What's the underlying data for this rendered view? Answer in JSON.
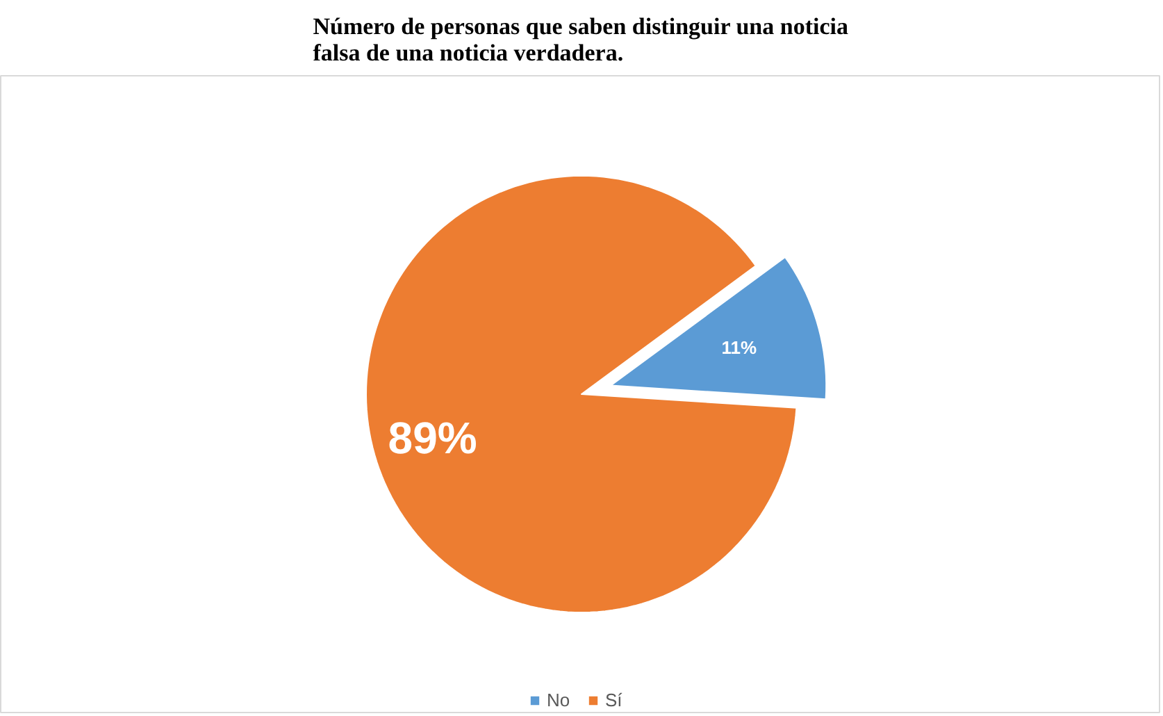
{
  "chart_data": {
    "type": "pie",
    "title": "Número de personas que saben distinguir una noticia falsa de una noticia verdadera.",
    "categories": [
      "No",
      "Sí"
    ],
    "values": [
      11,
      89
    ],
    "colors": [
      "#5b9bd5",
      "#ed7d31"
    ],
    "value_labels": [
      "11%",
      "89%"
    ],
    "legend": "bottom"
  }
}
